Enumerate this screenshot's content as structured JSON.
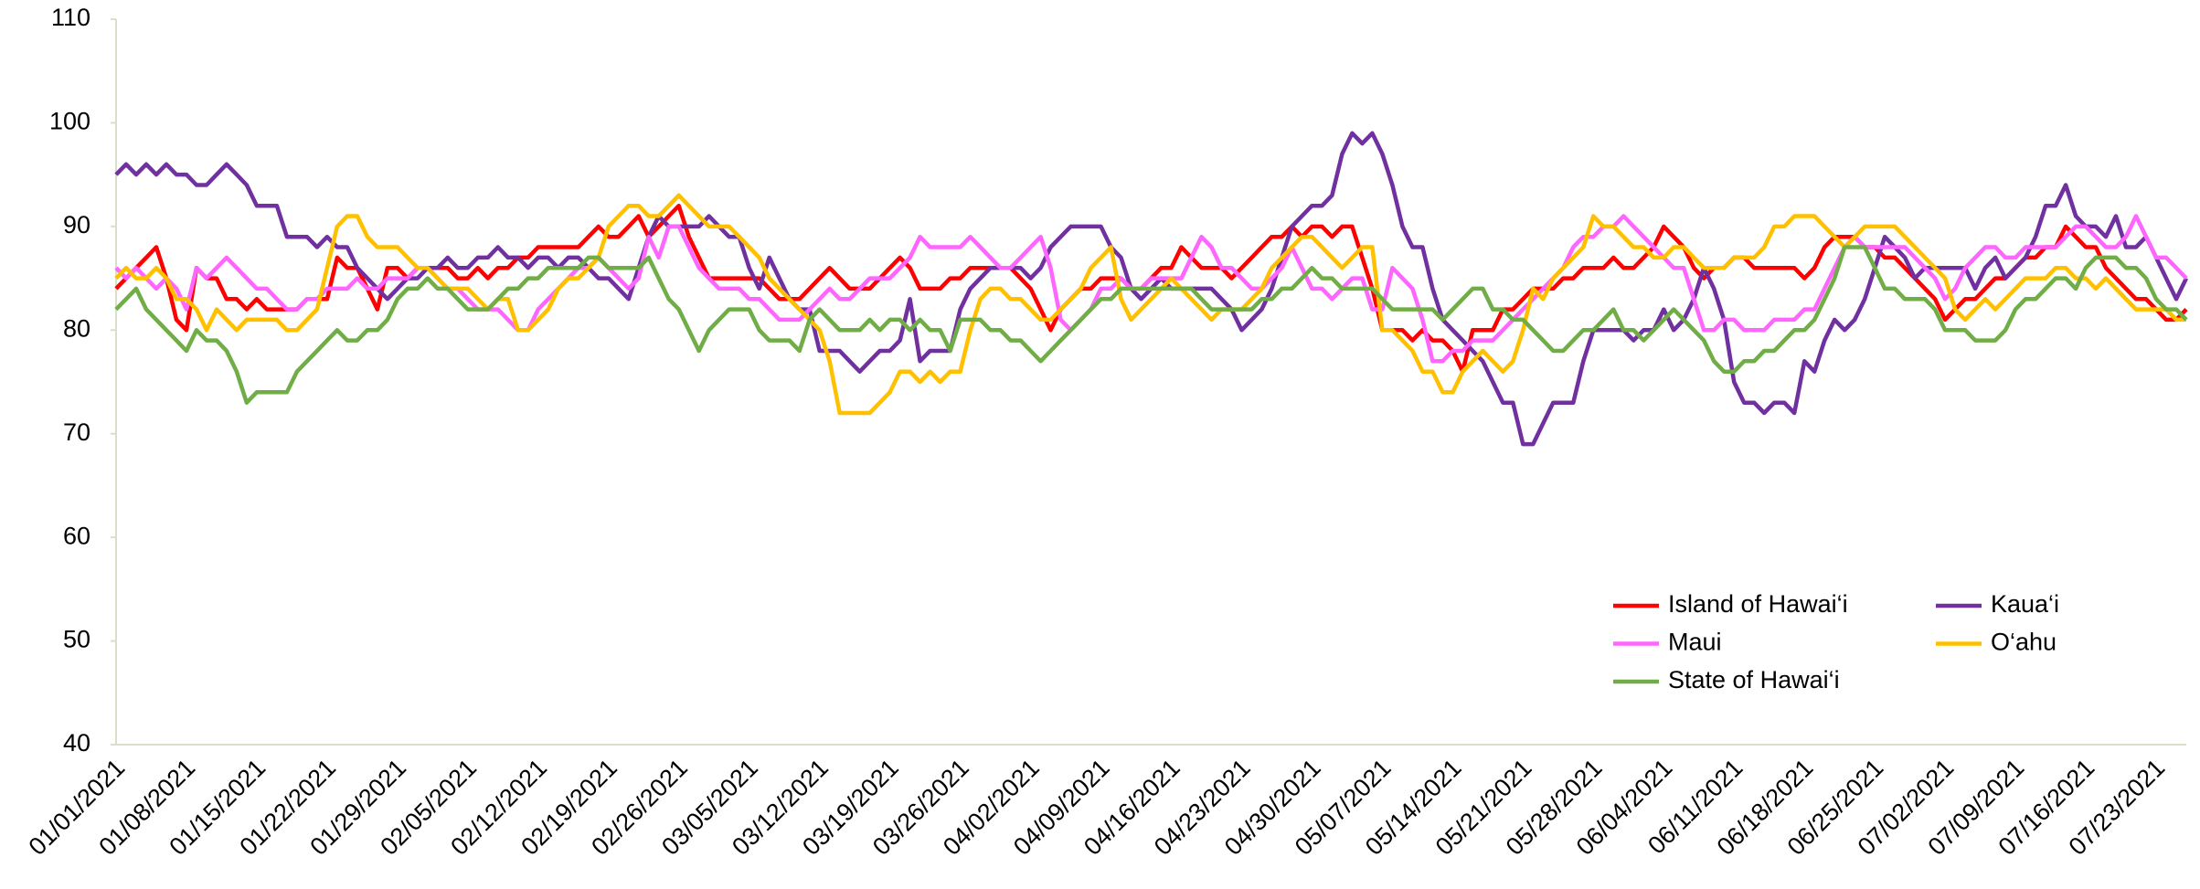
{
  "chart_data": {
    "type": "line",
    "categories": [
      "01/01/2021",
      null,
      null,
      null,
      null,
      null,
      null,
      "01/08/2021",
      null,
      null,
      null,
      null,
      null,
      null,
      "01/15/2021",
      null,
      null,
      null,
      null,
      null,
      null,
      "01/22/2021",
      null,
      null,
      null,
      null,
      null,
      null,
      "01/29/2021",
      null,
      null,
      null,
      null,
      null,
      null,
      "02/05/2021",
      null,
      null,
      null,
      null,
      null,
      null,
      "02/12/2021",
      null,
      null,
      null,
      null,
      null,
      null,
      "02/19/2021",
      null,
      null,
      null,
      null,
      null,
      null,
      "02/26/2021",
      null,
      null,
      null,
      null,
      null,
      null,
      "03/05/2021",
      null,
      null,
      null,
      null,
      null,
      null,
      "03/12/2021",
      null,
      null,
      null,
      null,
      null,
      null,
      "03/19/2021",
      null,
      null,
      null,
      null,
      null,
      null,
      "03/26/2021",
      null,
      null,
      null,
      null,
      null,
      null,
      "04/02/2021",
      null,
      null,
      null,
      null,
      null,
      null,
      "04/09/2021",
      null,
      null,
      null,
      null,
      null,
      null,
      "04/16/2021",
      null,
      null,
      null,
      null,
      null,
      null,
      "04/23/2021",
      null,
      null,
      null,
      null,
      null,
      null,
      "04/30/2021",
      null,
      null,
      null,
      null,
      null,
      null,
      "05/07/2021",
      null,
      null,
      null,
      null,
      null,
      null,
      "05/14/2021",
      null,
      null,
      null,
      null,
      null,
      null,
      "05/21/2021",
      null,
      null,
      null,
      null,
      null,
      null,
      "05/28/2021",
      null,
      null,
      null,
      null,
      null,
      null,
      "06/04/2021",
      null,
      null,
      null,
      null,
      null,
      null,
      "06/11/2021",
      null,
      null,
      null,
      null,
      null,
      null,
      "06/18/2021",
      null,
      null,
      null,
      null,
      null,
      null,
      "06/25/2021",
      null,
      null,
      null,
      null,
      null,
      null,
      "07/02/2021",
      null,
      null,
      null,
      null,
      null,
      null,
      "07/09/2021",
      null,
      null,
      null,
      null,
      null,
      null,
      "07/16/2021",
      null,
      null,
      null,
      null,
      null,
      null,
      "07/23/2021",
      null,
      null,
      null
    ],
    "series": [
      {
        "name": "Island of Hawai‘i",
        "color": "#ff0000",
        "values": [
          84,
          85,
          86,
          87,
          88,
          85,
          81,
          80,
          86,
          85,
          85,
          83,
          83,
          82,
          83,
          82,
          82,
          82,
          82,
          83,
          83,
          83,
          87,
          86,
          86,
          84,
          82,
          86,
          86,
          85,
          86,
          86,
          86,
          86,
          85,
          85,
          86,
          85,
          86,
          86,
          87,
          87,
          88,
          88,
          88,
          88,
          88,
          89,
          90,
          89,
          89,
          90,
          91,
          89,
          90,
          91,
          92,
          89,
          87,
          85,
          85,
          85,
          85,
          85,
          85,
          84,
          83,
          83,
          83,
          84,
          85,
          86,
          85,
          84,
          84,
          84,
          85,
          86,
          87,
          86,
          84,
          84,
          84,
          85,
          85,
          86,
          86,
          86,
          86,
          86,
          85,
          84,
          82,
          80,
          82,
          83,
          84,
          84,
          85,
          85,
          85,
          84,
          84,
          85,
          86,
          86,
          88,
          87,
          86,
          86,
          86,
          85,
          86,
          87,
          88,
          89,
          89,
          90,
          89,
          90,
          90,
          89,
          90,
          90,
          87,
          84,
          80,
          80,
          80,
          79,
          80,
          79,
          79,
          78,
          76,
          80,
          80,
          80,
          82,
          82,
          83,
          84,
          84,
          84,
          85,
          85,
          86,
          86,
          86,
          87,
          86,
          86,
          87,
          88,
          90,
          89,
          88,
          86,
          85,
          86,
          86,
          87,
          87,
          86,
          86,
          86,
          86,
          86,
          85,
          86,
          88,
          89,
          89,
          89,
          88,
          88,
          87,
          87,
          86,
          85,
          84,
          83,
          81,
          82,
          83,
          83,
          84,
          85,
          85,
          86,
          87,
          87,
          88,
          88,
          90,
          89,
          88,
          88,
          86,
          85,
          84,
          83,
          83,
          82,
          81,
          81,
          82
        ]
      },
      {
        "name": "Kaua‘i",
        "color": "#7030a0",
        "values": [
          95,
          96,
          95,
          96,
          95,
          96,
          95,
          95,
          94,
          94,
          95,
          96,
          95,
          94,
          92,
          92,
          92,
          89,
          89,
          89,
          88,
          89,
          88,
          88,
          86,
          85,
          84,
          83,
          84,
          85,
          85,
          86,
          86,
          87,
          86,
          86,
          87,
          87,
          88,
          87,
          87,
          86,
          87,
          87,
          86,
          87,
          87,
          86,
          85,
          85,
          84,
          83,
          86,
          89,
          91,
          90,
          90,
          90,
          90,
          91,
          90,
          89,
          89,
          86,
          84,
          87,
          85,
          83,
          82,
          82,
          78,
          78,
          78,
          77,
          76,
          77,
          78,
          78,
          79,
          83,
          77,
          78,
          78,
          78,
          82,
          84,
          85,
          86,
          86,
          86,
          86,
          85,
          86,
          88,
          89,
          90,
          90,
          90,
          90,
          88,
          87,
          84,
          83,
          84,
          85,
          84,
          84,
          84,
          84,
          84,
          83,
          82,
          80,
          81,
          82,
          84,
          87,
          90,
          91,
          92,
          92,
          93,
          97,
          99,
          98,
          99,
          97,
          94,
          90,
          88,
          88,
          84,
          81,
          80,
          79,
          78,
          77,
          75,
          73,
          73,
          69,
          69,
          71,
          73,
          73,
          73,
          77,
          80,
          80,
          80,
          80,
          79,
          80,
          80,
          82,
          80,
          81,
          83,
          86,
          84,
          81,
          75,
          73,
          73,
          72,
          73,
          73,
          72,
          77,
          76,
          79,
          81,
          80,
          81,
          83,
          86,
          89,
          88,
          87,
          85,
          86,
          86,
          86,
          86,
          86,
          84,
          86,
          87,
          85,
          86,
          87,
          89,
          92,
          92,
          94,
          91,
          90,
          90,
          89,
          91,
          88,
          88,
          89,
          87,
          85,
          83,
          85
        ]
      },
      {
        "name": "Maui",
        "color": "#ff66ff",
        "values": [
          86,
          85,
          86,
          85,
          84,
          85,
          84,
          82,
          86,
          85,
          86,
          87,
          86,
          85,
          84,
          84,
          83,
          82,
          82,
          83,
          83,
          84,
          84,
          84,
          85,
          84,
          84,
          85,
          85,
          85,
          86,
          86,
          85,
          84,
          84,
          83,
          82,
          82,
          82,
          81,
          80,
          80,
          82,
          83,
          84,
          85,
          86,
          86,
          87,
          86,
          85,
          84,
          85,
          89,
          87,
          90,
          90,
          88,
          86,
          85,
          84,
          84,
          84,
          83,
          83,
          82,
          81,
          81,
          81,
          82,
          83,
          84,
          83,
          83,
          84,
          85,
          85,
          85,
          86,
          87,
          89,
          88,
          88,
          88,
          88,
          89,
          88,
          87,
          86,
          86,
          87,
          88,
          89,
          86,
          81,
          80,
          81,
          82,
          84,
          84,
          85,
          84,
          84,
          85,
          85,
          85,
          85,
          87,
          89,
          88,
          86,
          86,
          85,
          84,
          84,
          85,
          86,
          88,
          86,
          84,
          84,
          83,
          84,
          85,
          85,
          82,
          82,
          86,
          85,
          84,
          81,
          77,
          77,
          78,
          78,
          79,
          79,
          79,
          80,
          81,
          82,
          83,
          84,
          85,
          86,
          88,
          89,
          89,
          90,
          90,
          91,
          90,
          89,
          88,
          87,
          86,
          86,
          83,
          80,
          80,
          81,
          81,
          80,
          80,
          80,
          81,
          81,
          81,
          82,
          82,
          84,
          86,
          88,
          89,
          88,
          88,
          88,
          88,
          88,
          87,
          86,
          85,
          83,
          84,
          86,
          87,
          88,
          88,
          87,
          87,
          88,
          88,
          88,
          88,
          89,
          90,
          90,
          89,
          88,
          88,
          89,
          91,
          89,
          87,
          87,
          86,
          85
        ]
      },
      {
        "name": "O‘ahu",
        "color": "#ffc000",
        "values": [
          85,
          86,
          85,
          85,
          86,
          85,
          83,
          83,
          82,
          80,
          82,
          81,
          80,
          81,
          81,
          81,
          81,
          80,
          80,
          81,
          82,
          86,
          90,
          91,
          91,
          89,
          88,
          88,
          88,
          87,
          86,
          86,
          85,
          84,
          84,
          84,
          83,
          82,
          83,
          83,
          80,
          80,
          81,
          82,
          84,
          85,
          85,
          86,
          87,
          90,
          91,
          92,
          92,
          91,
          91,
          92,
          93,
          92,
          91,
          90,
          90,
          90,
          89,
          88,
          87,
          85,
          84,
          83,
          82,
          81,
          80,
          77,
          72,
          72,
          72,
          72,
          73,
          74,
          76,
          76,
          75,
          76,
          75,
          76,
          76,
          80,
          83,
          84,
          84,
          83,
          83,
          82,
          81,
          81,
          82,
          83,
          84,
          86,
          87,
          88,
          83,
          81,
          82,
          83,
          84,
          85,
          84,
          83,
          82,
          81,
          82,
          82,
          82,
          83,
          84,
          86,
          87,
          88,
          89,
          89,
          88,
          87,
          86,
          87,
          88,
          88,
          80,
          80,
          79,
          78,
          76,
          76,
          74,
          74,
          76,
          77,
          78,
          77,
          76,
          77,
          80,
          84,
          83,
          85,
          86,
          87,
          88,
          91,
          90,
          90,
          89,
          88,
          88,
          87,
          87,
          88,
          88,
          87,
          86,
          86,
          86,
          87,
          87,
          87,
          88,
          90,
          90,
          91,
          91,
          91,
          90,
          89,
          88,
          89,
          90,
          90,
          90,
          90,
          89,
          88,
          87,
          86,
          85,
          82,
          81,
          82,
          83,
          82,
          83,
          84,
          85,
          85,
          85,
          86,
          86,
          85,
          85,
          84,
          85,
          84,
          83,
          82,
          82,
          82,
          82,
          81,
          81
        ]
      },
      {
        "name": "State of Hawai‘i",
        "color": "#70ad47",
        "values": [
          82,
          83,
          84,
          82,
          81,
          80,
          79,
          78,
          80,
          79,
          79,
          78,
          76,
          73,
          74,
          74,
          74,
          74,
          76,
          77,
          78,
          79,
          80,
          79,
          79,
          80,
          80,
          81,
          83,
          84,
          84,
          85,
          84,
          84,
          83,
          82,
          82,
          82,
          83,
          84,
          84,
          85,
          85,
          86,
          86,
          86,
          86,
          87,
          87,
          86,
          86,
          86,
          86,
          87,
          85,
          83,
          82,
          80,
          78,
          80,
          81,
          82,
          82,
          82,
          80,
          79,
          79,
          79,
          78,
          81,
          82,
          81,
          80,
          80,
          80,
          81,
          80,
          81,
          81,
          80,
          81,
          80,
          80,
          78,
          81,
          81,
          81,
          80,
          80,
          79,
          79,
          78,
          77,
          78,
          79,
          80,
          81,
          82,
          83,
          83,
          84,
          84,
          84,
          84,
          84,
          84,
          84,
          84,
          83,
          82,
          82,
          82,
          82,
          82,
          83,
          83,
          84,
          84,
          85,
          86,
          85,
          85,
          84,
          84,
          84,
          84,
          83,
          82,
          82,
          82,
          82,
          82,
          81,
          82,
          83,
          84,
          84,
          82,
          82,
          81,
          81,
          80,
          79,
          78,
          78,
          79,
          80,
          80,
          81,
          82,
          80,
          80,
          79,
          80,
          81,
          82,
          81,
          80,
          79,
          77,
          76,
          76,
          77,
          77,
          78,
          78,
          79,
          80,
          80,
          81,
          83,
          85,
          88,
          88,
          88,
          86,
          84,
          84,
          83,
          83,
          83,
          82,
          80,
          80,
          80,
          79,
          79,
          79,
          80,
          82,
          83,
          83,
          84,
          85,
          85,
          84,
          86,
          87,
          87,
          87,
          86,
          86,
          85,
          83,
          82,
          82,
          81
        ]
      }
    ],
    "ylim": [
      40,
      110
    ],
    "yticks": [
      40,
      50,
      60,
      70,
      80,
      90,
      100,
      110
    ],
    "grid": false,
    "legend": "lower right"
  }
}
